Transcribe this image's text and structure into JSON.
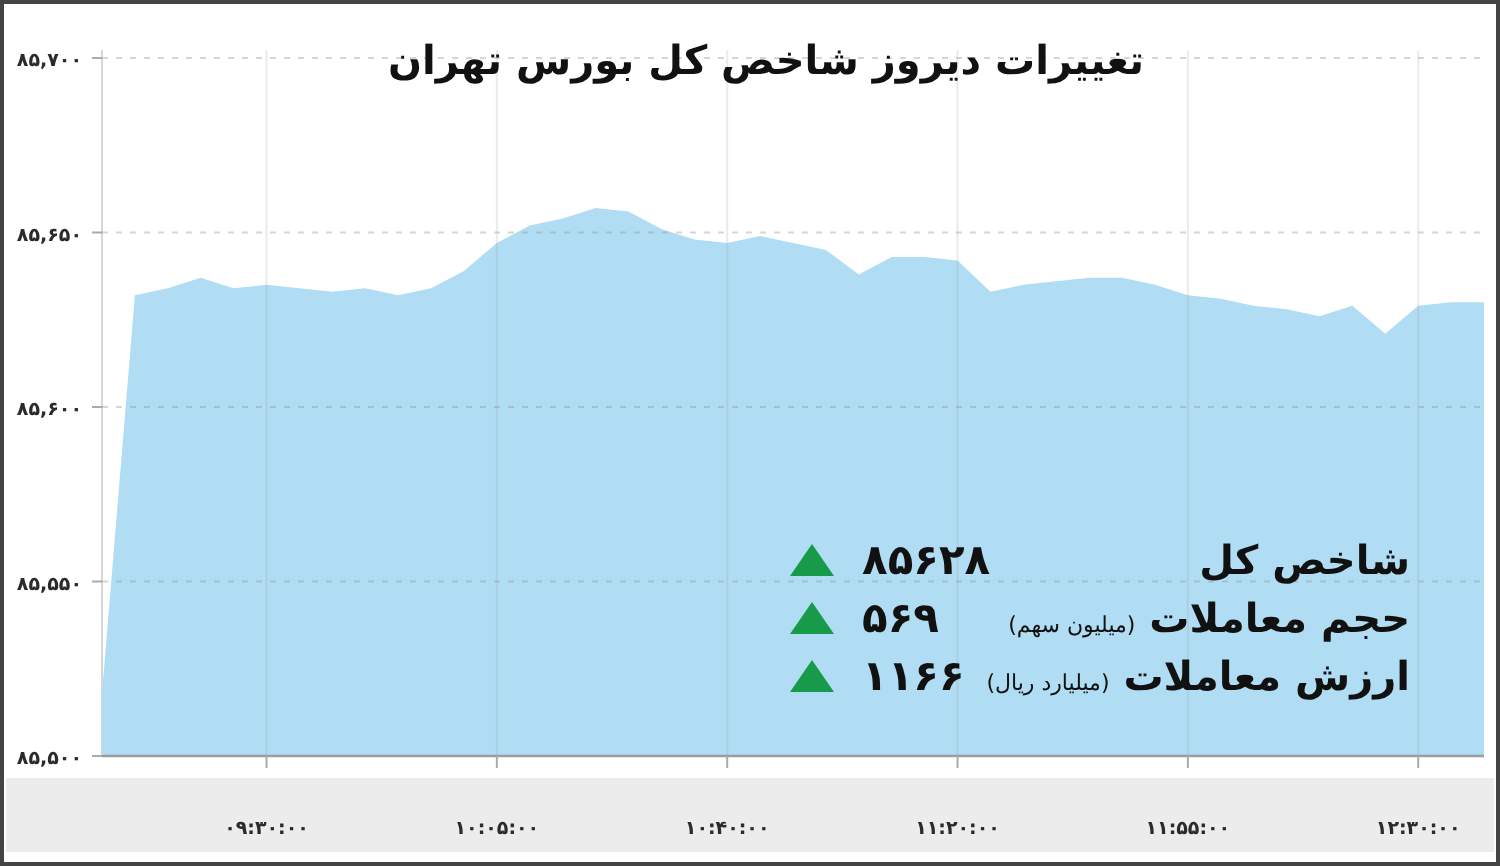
{
  "chart_data": {
    "type": "area",
    "title": "تغییرات دیروز شاخص کل بورس تهران",
    "categories": [
      null,
      null,
      null,
      null,
      null,
      "۰۹:۳۰:۰۰",
      null,
      null,
      null,
      null,
      null,
      null,
      "۱۰:۰۵:۰۰",
      null,
      null,
      null,
      null,
      null,
      null,
      "۱۰:۴۰:۰۰",
      null,
      null,
      null,
      null,
      null,
      null,
      "۱۱:۲۰:۰۰",
      null,
      null,
      null,
      null,
      null,
      null,
      "۱۱:۵۵:۰۰",
      null,
      null,
      null,
      null,
      null,
      null,
      "۱۲:۳۰:۰۰",
      null,
      null
    ],
    "values": [
      85518,
      85632,
      85634,
      85637,
      85634,
      85635,
      85634,
      85633,
      85634,
      85632,
      85634,
      85639,
      85647,
      85652,
      85654,
      85657,
      85656,
      85651,
      85648,
      85647,
      85649,
      85647,
      85645,
      85638,
      85643,
      85643,
      85642,
      85633,
      85635,
      85636,
      85637,
      85637,
      85635,
      85632,
      85631,
      85629,
      85628,
      85626,
      85629,
      85621,
      85629,
      85630,
      85630
    ],
    "color": "#b0ddf3",
    "ylim": [
      85500,
      85700
    ],
    "yticks": [
      {
        "value": 85500,
        "label": "۸۵,۵۰۰"
      },
      {
        "value": 85550,
        "label": "۸۵,۵۵۰"
      },
      {
        "value": 85600,
        "label": "۸۵,۶۰۰"
      },
      {
        "value": 85650,
        "label": "۸۵,۶۵۰"
      },
      {
        "value": 85700,
        "label": "۸۵,۷۰۰"
      }
    ],
    "grid": true,
    "annotations": [
      "شاخص کل",
      "۸۵۶۲۸",
      "حجم معاملات (میلیون سهم)",
      "۵۶۹",
      "ارزش معاملات (میلیارد ریال)",
      "۱۱۶۶"
    ]
  }
}
